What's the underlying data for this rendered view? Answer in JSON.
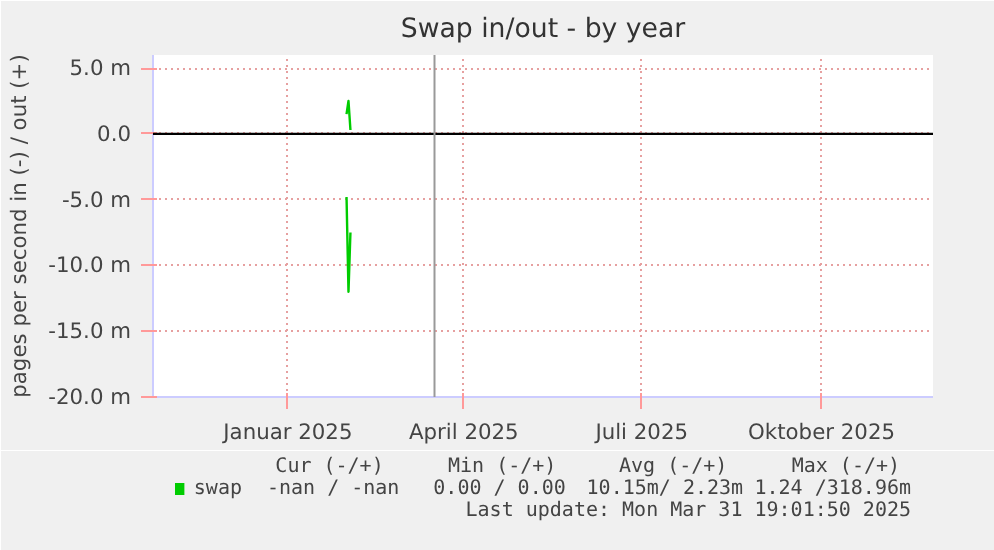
{
  "chart_data": {
    "type": "line",
    "title": "Swap in/out - by year",
    "ylabel": "pages per second in (-) / out (+)",
    "xlim": [
      "2024-11-07",
      "2025-12-11"
    ],
    "xticks": [
      {
        "value": "2025-01-15",
        "label": "Januar 2025"
      },
      {
        "value": "2025-04-15",
        "label": "April 2025"
      },
      {
        "value": "2025-07-15",
        "label": "Juli 2025"
      },
      {
        "value": "2025-10-15",
        "label": "Oktober 2025"
      }
    ],
    "ylim": [
      -20,
      6
    ],
    "yticks": [
      {
        "value": -20,
        "label": "-20.0 m"
      },
      {
        "value": -15,
        "label": "-15.0 m"
      },
      {
        "value": -10,
        "label": "-10.0 m"
      },
      {
        "value": -5,
        "label": "-5.0 m"
      },
      {
        "value": 0,
        "label": "0.0"
      },
      {
        "value": 5,
        "label": "5.0 m"
      }
    ],
    "series": [
      {
        "color": "#00cc00",
        "x": [
          "2025-02-14",
          "2025-02-15",
          "2025-02-16"
        ],
        "values": [
          -4.8,
          -12,
          -7.5
        ]
      },
      {
        "name": "swap",
        "color": "#00cc00",
        "x": [
          "2025-02-14",
          "2025-02-15",
          "2025-02-16"
        ],
        "values": [
          1.5,
          2.5,
          0.3
        ]
      }
    ],
    "ref_lines": [
      {
        "axis": "y",
        "value": 0,
        "color": "#000000"
      },
      {
        "axis": "x",
        "value": "2025-03-31",
        "color": "#999999"
      }
    ],
    "annotations": [
      "Cur (-/+)",
      "Min (-/+)",
      "Avg (-/+)",
      "Max (-/+)",
      "-nan / -nan",
      "0.00 / 0.00",
      "10.15m/ 2.23m",
      "1.24 /318.96m",
      "Last update: Mon Mar 31 19:01:50 2025"
    ],
    "grid": true,
    "legend": "bottom left",
    "marker": "none",
    "line_style": "solid"
  }
}
